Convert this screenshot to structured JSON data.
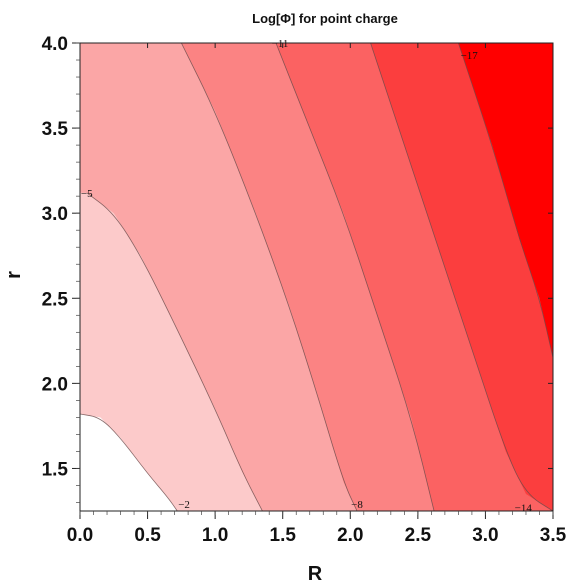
{
  "chart_data": {
    "type": "contour",
    "title": "Log[Φ] for point charge",
    "xlabel": "R",
    "ylabel": "r",
    "xlim": [
      0.0,
      3.5
    ],
    "ylim": [
      1.25,
      4.0
    ],
    "x_ticks": [
      "0.0",
      "0.5",
      "1.0",
      "1.5",
      "2.0",
      "2.5",
      "3.0",
      "3.5"
    ],
    "y_ticks": [
      "1.5",
      "2.0",
      "2.5",
      "3.0",
      "3.5",
      "4.0"
    ],
    "region_colors": [
      "#ffffff",
      "#fccaca",
      "#fba6a6",
      "#fb8383",
      "#fb6262",
      "#fb3e3e",
      "#ff0000"
    ],
    "contours": [
      {
        "level": "-2",
        "points": [
          [
            0.0,
            1.82
          ],
          [
            0.15,
            1.8
          ],
          [
            0.3,
            1.68
          ],
          [
            0.5,
            1.47
          ],
          [
            0.65,
            1.33
          ],
          [
            0.72,
            1.25
          ]
        ]
      },
      {
        "level": "-5",
        "points": [
          [
            0.05,
            3.12
          ],
          [
            0.25,
            3.0
          ],
          [
            0.45,
            2.75
          ],
          [
            0.7,
            2.35
          ],
          [
            1.0,
            1.85
          ],
          [
            1.2,
            1.48
          ],
          [
            1.35,
            1.25
          ]
        ]
      },
      {
        "level": "-8",
        "points": [
          [
            0.75,
            4.0
          ],
          [
            1.0,
            3.6
          ],
          [
            1.3,
            3.0
          ],
          [
            1.55,
            2.45
          ],
          [
            1.75,
            1.95
          ],
          [
            1.95,
            1.42
          ],
          [
            2.05,
            1.25
          ]
        ]
      },
      {
        "level": "-11",
        "points": [
          [
            1.45,
            4.0
          ],
          [
            1.7,
            3.5
          ],
          [
            1.95,
            3.0
          ],
          [
            2.2,
            2.4
          ],
          [
            2.45,
            1.8
          ],
          [
            2.62,
            1.25
          ]
        ]
      },
      {
        "level": "-14",
        "points": [
          [
            2.15,
            4.0
          ],
          [
            2.4,
            3.4
          ],
          [
            2.65,
            2.8
          ],
          [
            2.9,
            2.2
          ],
          [
            3.15,
            1.6
          ],
          [
            3.3,
            1.35
          ],
          [
            3.5,
            1.25
          ]
        ]
      },
      {
        "level": "-17",
        "points": [
          [
            2.8,
            4.0
          ],
          [
            3.05,
            3.4
          ],
          [
            3.25,
            2.85
          ],
          [
            3.4,
            2.5
          ],
          [
            3.5,
            2.15
          ]
        ]
      }
    ],
    "contour_labels": [
      {
        "text": "-2",
        "x": 0.77,
        "y": 1.29
      },
      {
        "text": "-5",
        "x": 0.05,
        "y": 3.12
      },
      {
        "text": "-8",
        "x": 2.05,
        "y": 1.29
      },
      {
        "text": "-11",
        "x": 1.48,
        "y": 4.0
      },
      {
        "text": "-14",
        "x": 3.28,
        "y": 1.27
      },
      {
        "text": "-17",
        "x": 2.88,
        "y": 3.93
      }
    ]
  }
}
